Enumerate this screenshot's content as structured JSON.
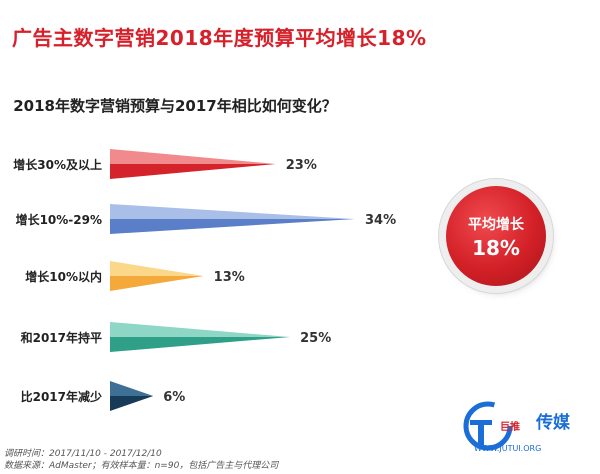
{
  "headline": "广告主数字营销2018年度预算平均增长18%",
  "chart_data": {
    "type": "bar",
    "title": "2018年数字营销预算与2017年相比如何变化？",
    "categories": [
      "增长30%及以上",
      "增长10%-29%",
      "增长10%以内",
      "和2017年持平",
      "比2017年减少"
    ],
    "values": [
      23,
      34,
      13,
      25,
      6
    ],
    "value_labels": [
      "23%",
      "34%",
      "13%",
      "25%",
      "6%"
    ],
    "colors": [
      {
        "light": "#f08a8c",
        "dark": "#d5232c"
      },
      {
        "light": "#a9bfe8",
        "dark": "#5b7ec9"
      },
      {
        "light": "#fbd889",
        "dark": "#f4a93a"
      },
      {
        "light": "#8ed6c6",
        "dark": "#2f9f88"
      },
      {
        "light": "#3e6f95",
        "dark": "#183a59"
      }
    ],
    "xlim": [
      0,
      34
    ]
  },
  "badge": {
    "label": "平均增长",
    "value": "18%"
  },
  "footnotes": {
    "line1": "调研时间：2017/11/10 - 2017/12/10",
    "line2": "数据来源：AdMaster；有效样本量：n=90，包括广告主与代理公司"
  },
  "watermark": {
    "brand": "传媒",
    "word": "巨推",
    "url": "WWW.JUTUI.ORG",
    "accent": "#1b6ed8"
  }
}
